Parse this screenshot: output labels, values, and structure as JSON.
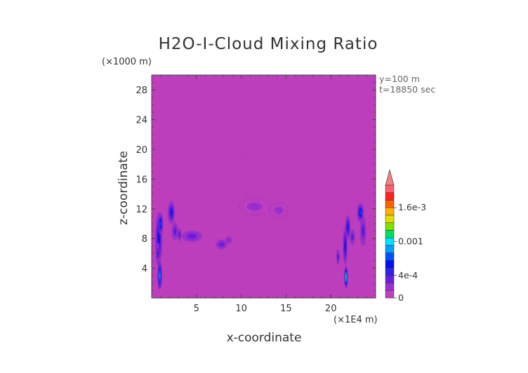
{
  "chart_data": {
    "type": "heatmap",
    "title": "H2O-I-Cloud Mixing Ratio",
    "y_unit": "(×1000 m)",
    "x_unit": "(×1E4 m)",
    "xlabel": "x-coordinate",
    "ylabel": "z-coordinate",
    "annotations": [
      "y=100 m",
      "t=18850 sec"
    ],
    "xlim": [
      0,
      25
    ],
    "ylim": [
      0,
      30
    ],
    "x_ticks": [
      5,
      10,
      15,
      20
    ],
    "y_ticks": [
      4,
      8,
      12,
      16,
      20,
      24,
      28
    ],
    "background_color": "#c040c0",
    "colorbar": {
      "ticks": [
        {
          "value": 0,
          "label": "0"
        },
        {
          "value": 0.0004,
          "label": "4e-4"
        },
        {
          "value": 0.001,
          "label": "0.001"
        },
        {
          "value": 0.0016,
          "label": "1.6e-3"
        }
      ],
      "max": 0.002,
      "colors": [
        "#c040c0",
        "#9a2fd0",
        "#6a1fe0",
        "#3020e8",
        "#0010f0",
        "#0050ff",
        "#00a0ff",
        "#00e0ff",
        "#00e060",
        "#80e000",
        "#e0e000",
        "#ffb000",
        "#ff6000",
        "#ff2020",
        "#ff6070"
      ],
      "extend_color": "#f08080"
    },
    "features": [
      {
        "x": 0.8,
        "z": 8.0,
        "dx": 0.35,
        "dz": 3.5,
        "level": 0.0005
      },
      {
        "x": 0.9,
        "z": 3.0,
        "dx": 0.22,
        "dz": 1.8,
        "level": 0.0009
      },
      {
        "x": 1.0,
        "z": 10.0,
        "dx": 0.25,
        "dz": 1.5,
        "level": 0.0007
      },
      {
        "x": 0.7,
        "z": 6.0,
        "dx": 0.2,
        "dz": 1.5,
        "level": 0.0004
      },
      {
        "x": 2.2,
        "z": 11.5,
        "dx": 0.35,
        "dz": 1.5,
        "level": 0.0005
      },
      {
        "x": 2.6,
        "z": 9.0,
        "dx": 0.3,
        "dz": 1.2,
        "level": 0.0004
      },
      {
        "x": 3.1,
        "z": 8.5,
        "dx": 0.2,
        "dz": 0.8,
        "level": 0.0003
      },
      {
        "x": 4.5,
        "z": 8.3,
        "dx": 1.1,
        "dz": 0.7,
        "level": 0.0003
      },
      {
        "x": 7.8,
        "z": 7.2,
        "dx": 0.6,
        "dz": 0.6,
        "level": 0.0003
      },
      {
        "x": 8.6,
        "z": 7.8,
        "dx": 0.4,
        "dz": 0.5,
        "level": 0.0002
      },
      {
        "x": 11.5,
        "z": 12.3,
        "dx": 1.7,
        "dz": 1.1,
        "level": 0.0001
      },
      {
        "x": 14.2,
        "z": 11.8,
        "dx": 1.0,
        "dz": 1.0,
        "level": 0.0001
      },
      {
        "x": 20.8,
        "z": 5.5,
        "dx": 0.15,
        "dz": 1.0,
        "level": 0.0004
      },
      {
        "x": 21.7,
        "z": 2.8,
        "dx": 0.18,
        "dz": 1.4,
        "level": 0.0012
      },
      {
        "x": 21.6,
        "z": 7.0,
        "dx": 0.22,
        "dz": 2.5,
        "level": 0.0006
      },
      {
        "x": 21.9,
        "z": 9.5,
        "dx": 0.25,
        "dz": 1.6,
        "level": 0.0005
      },
      {
        "x": 22.4,
        "z": 8.2,
        "dx": 0.25,
        "dz": 1.0,
        "level": 0.0004
      },
      {
        "x": 23.3,
        "z": 11.5,
        "dx": 0.35,
        "dz": 1.3,
        "level": 0.0007
      },
      {
        "x": 23.6,
        "z": 9.0,
        "dx": 0.3,
        "dz": 2.0,
        "level": 0.0004
      }
    ]
  }
}
